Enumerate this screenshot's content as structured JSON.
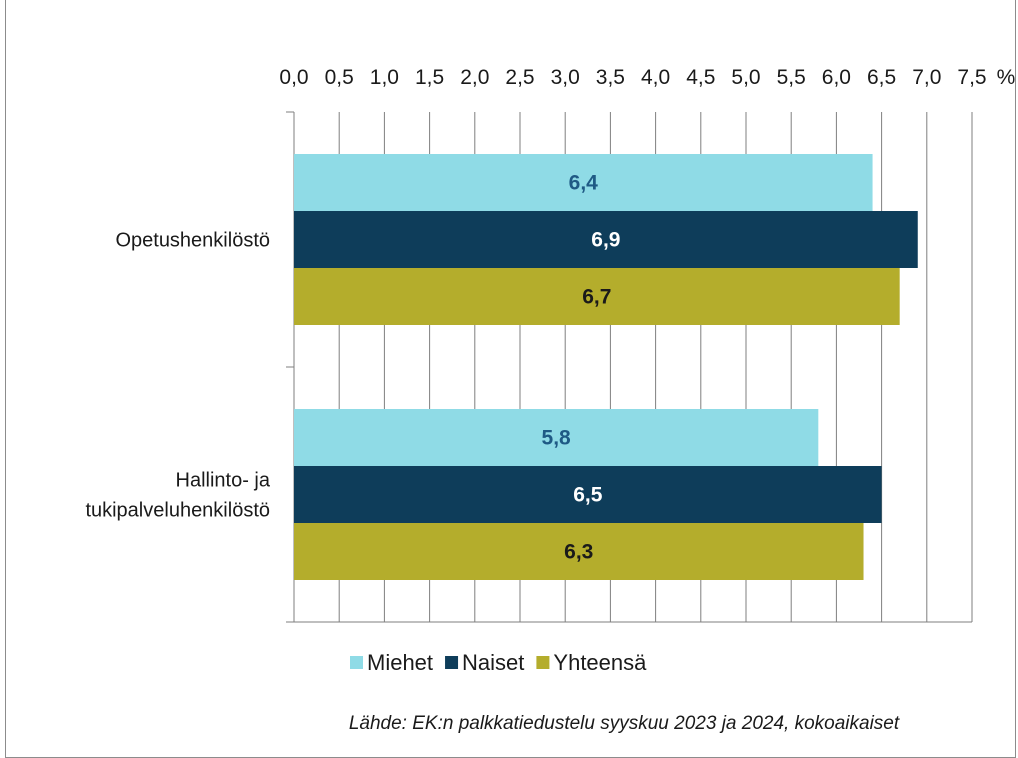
{
  "chart_data": {
    "type": "bar",
    "orientation": "horizontal",
    "categories": [
      "Opetushenkilöstö",
      "Hallinto- ja tukipalveluhenkilöstö"
    ],
    "category_lines": [
      [
        "Opetushenkilöstö"
      ],
      [
        "Hallinto- ja",
        "tukipalveluhenkilöstö"
      ]
    ],
    "series": [
      {
        "name": "Miehet",
        "values": [
          6.4,
          5.8
        ],
        "labels": [
          "6,4",
          "5,8"
        ],
        "color": "#8fdbe6",
        "label_color": "#1f5a85"
      },
      {
        "name": "Naiset",
        "values": [
          6.9,
          6.5
        ],
        "labels": [
          "6,9",
          "6,5"
        ],
        "color": "#0e3d5a",
        "label_color": "#ffffff"
      },
      {
        "name": "Yhteensä",
        "values": [
          6.7,
          6.3
        ],
        "labels": [
          "6,7",
          "6,3"
        ],
        "color": "#b4ad2c",
        "label_color": "#1a1a1a"
      }
    ],
    "xlim": [
      0,
      7.5
    ],
    "x_ticks": [
      "0,0",
      "0,5",
      "1,0",
      "1,5",
      "2,0",
      "2,5",
      "3,0",
      "3,5",
      "4,0",
      "4,5",
      "5,0",
      "5,5",
      "6,0",
      "6,5",
      "7,0",
      "7,5"
    ],
    "x_unit": "%",
    "x_axis_position": "top",
    "grid": true,
    "legend_position": "bottom",
    "source": "Lähde:  EK:n palkkatiedustelu syyskuu 2023 ja 2024,  kokoaikaiset"
  }
}
